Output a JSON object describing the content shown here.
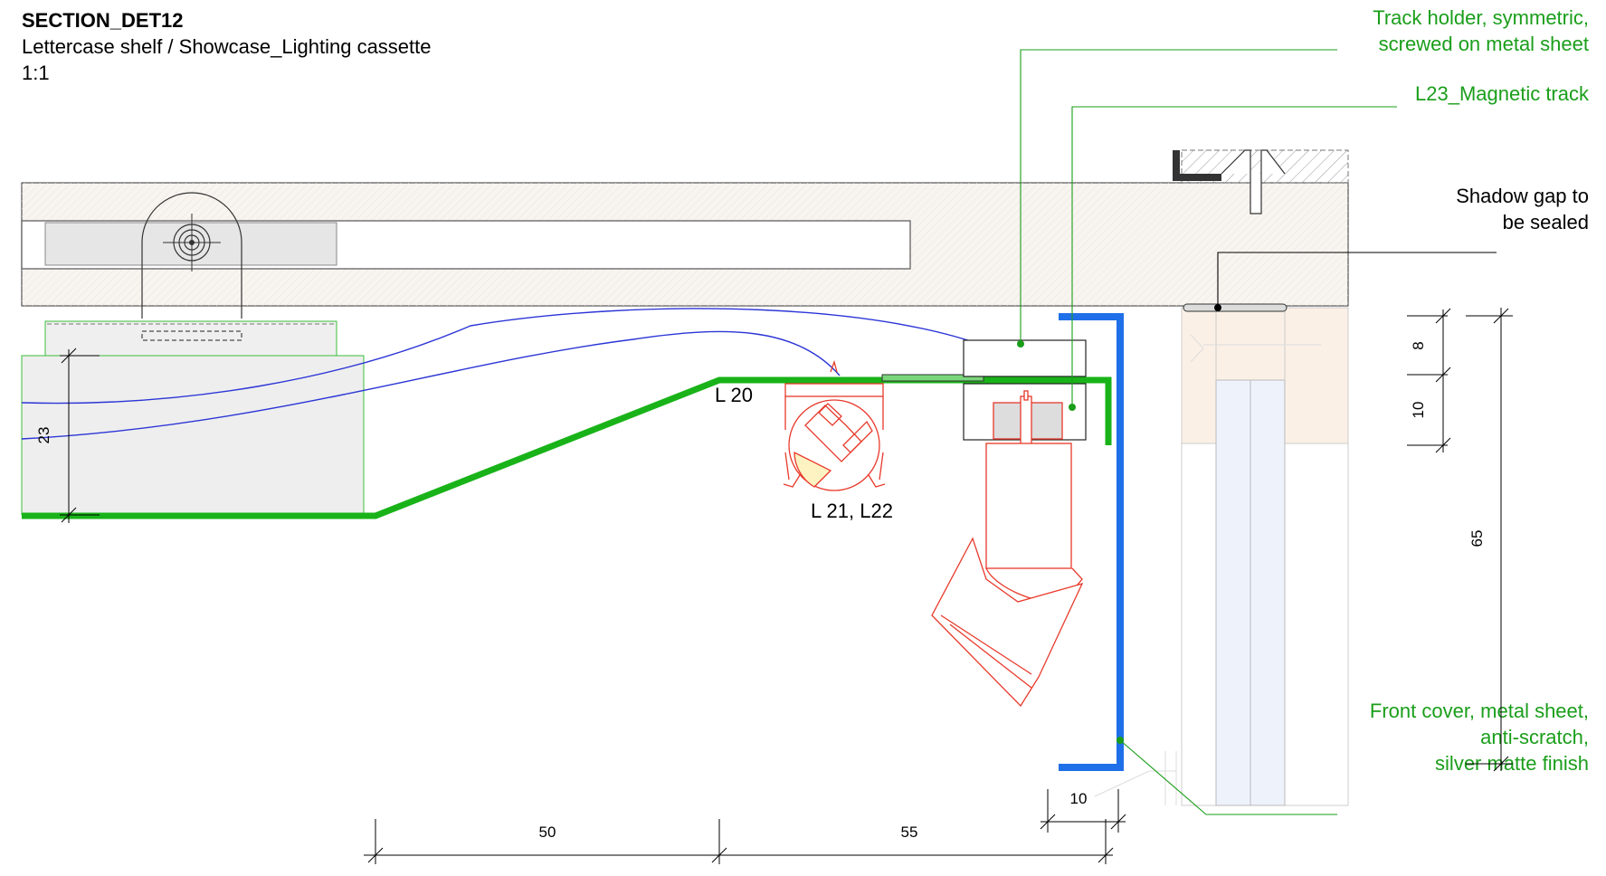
{
  "title": {
    "code": "SECTION_DET12",
    "subtitle": "Lettercase shelf / Showcase_Lighting cassette",
    "scale": "1:1"
  },
  "annotations": {
    "track_holder": [
      "Track holder, symmetric,",
      "screwed on metal sheet"
    ],
    "magnetic_track": "L23_Magnetic track",
    "shadow_gap": [
      "Shadow gap to",
      "be sealed"
    ],
    "front_cover": [
      "Front cover, metal sheet,",
      "anti-scratch,",
      "silver matte finish"
    ]
  },
  "labels": {
    "l20": "L 20",
    "l21_l22": "L 21, L22"
  },
  "dimensions": {
    "d23": "23",
    "d8": "8",
    "d10_vertical": "10",
    "d65": "65",
    "d10_horizontal": "10",
    "d50": "50",
    "d55": "55"
  },
  "colors": {
    "annotation_green": "#1a9e1a",
    "track_green": "#19b319",
    "cover_blue": "#1f6fe8",
    "luminaire_red": "#e8392b",
    "cable_blue": "#2b35d6"
  }
}
